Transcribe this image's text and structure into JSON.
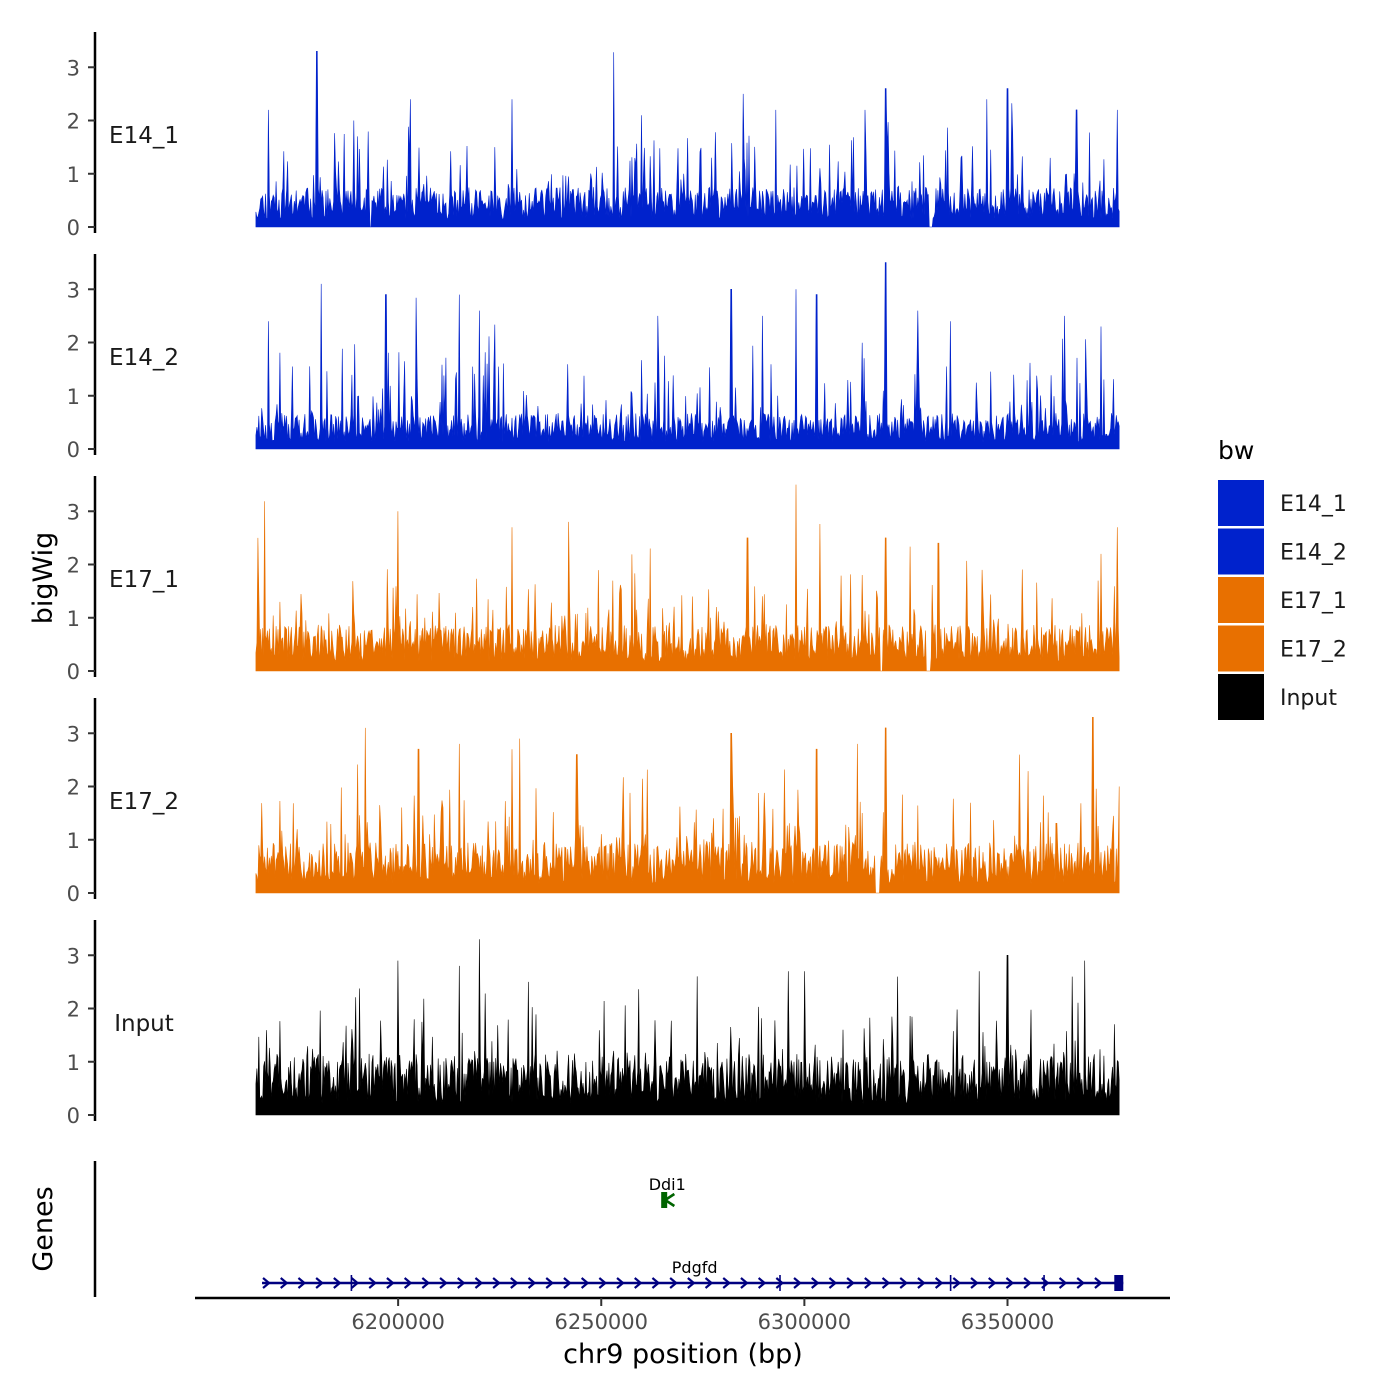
{
  "chart_data": {
    "type": "area",
    "x_label": "chr9 position (bp)",
    "x_range": [
      6150000,
      6390000
    ],
    "x_ticks": [
      {
        "value": 6200000,
        "label": "6200000"
      },
      {
        "value": 6250000,
        "label": "6250000"
      },
      {
        "value": 6300000,
        "label": "6300000"
      },
      {
        "value": 6350000,
        "label": "6350000"
      }
    ],
    "signal_x_range": [
      6165000,
      6377500
    ],
    "y_label": "bigWig",
    "y_range": [
      0,
      3.7
    ],
    "y_ticks": [
      {
        "value": 0,
        "label": "0"
      },
      {
        "value": 1,
        "label": "1"
      },
      {
        "value": 2,
        "label": "2"
      },
      {
        "value": 3,
        "label": "3"
      }
    ],
    "legend": {
      "title": "bw",
      "placement": "right",
      "entries": [
        {
          "label": "E14_1",
          "color": "#0022cc"
        },
        {
          "label": "E14_2",
          "color": "#0022cc"
        },
        {
          "label": "E17_1",
          "color": "#e87000"
        },
        {
          "label": "E17_2",
          "color": "#e87000"
        },
        {
          "label": "Input",
          "color": "#000000"
        }
      ]
    },
    "series": [
      {
        "name": "E14_1",
        "color": "#0022cc",
        "seed": 11,
        "baseline_mean": 0.55,
        "peaks": [
          [
            6168000,
            2.2
          ],
          [
            6180000,
            3.3
          ],
          [
            6189000,
            2.0
          ],
          [
            6203000,
            2.4
          ],
          [
            6228000,
            2.4
          ],
          [
            6260000,
            2.1
          ],
          [
            6285000,
            2.5
          ],
          [
            6293000,
            2.2
          ],
          [
            6315000,
            2.2
          ],
          [
            6320000,
            2.6
          ],
          [
            6345000,
            2.4
          ],
          [
            6350000,
            2.6
          ],
          [
            6367000,
            2.2
          ],
          [
            6377000,
            2.2
          ]
        ],
        "gaps": [
          [
            6330700,
            6331500
          ],
          [
            6193000,
            6193500
          ]
        ]
      },
      {
        "name": "E14_2",
        "color": "#0022cc",
        "seed": 23,
        "baseline_mean": 0.5,
        "peaks": [
          [
            6168000,
            2.4
          ],
          [
            6181000,
            3.1
          ],
          [
            6197000,
            2.9
          ],
          [
            6215000,
            2.9
          ],
          [
            6220000,
            2.6
          ],
          [
            6264000,
            2.5
          ],
          [
            6282000,
            3.0
          ],
          [
            6298000,
            3.0
          ],
          [
            6303000,
            2.9
          ],
          [
            6320000,
            3.5
          ],
          [
            6328000,
            2.6
          ],
          [
            6336000,
            2.4
          ],
          [
            6364000,
            2.5
          ],
          [
            6373000,
            2.3
          ]
        ],
        "gaps": []
      },
      {
        "name": "E17_1",
        "color": "#e87000",
        "seed": 37,
        "baseline_mean": 0.65,
        "peaks": [
          [
            6165500,
            2.5
          ],
          [
            6200000,
            3.0
          ],
          [
            6228000,
            2.7
          ],
          [
            6242000,
            2.8
          ],
          [
            6262000,
            2.3
          ],
          [
            6286000,
            2.5
          ],
          [
            6298000,
            3.5
          ],
          [
            6320000,
            2.5
          ],
          [
            6333000,
            2.4
          ],
          [
            6373000,
            2.2
          ],
          [
            6377000,
            2.7
          ]
        ],
        "gaps": [
          [
            6330000,
            6331000
          ],
          [
            6318500,
            6319200
          ]
        ]
      },
      {
        "name": "E17_2",
        "color": "#e87000",
        "seed": 41,
        "baseline_mean": 0.7,
        "peaks": [
          [
            6192000,
            3.1
          ],
          [
            6205000,
            2.7
          ],
          [
            6215000,
            2.8
          ],
          [
            6228000,
            2.7
          ],
          [
            6230000,
            2.9
          ],
          [
            6244000,
            2.6
          ],
          [
            6282000,
            3.0
          ],
          [
            6303000,
            2.7
          ],
          [
            6313000,
            2.8
          ],
          [
            6320000,
            3.1
          ],
          [
            6353000,
            2.6
          ],
          [
            6371000,
            3.3
          ],
          [
            6377500,
            2.0
          ]
        ],
        "gaps": [
          [
            6317500,
            6318500
          ]
        ]
      },
      {
        "name": "Input",
        "color": "#000000",
        "seed": 53,
        "baseline_mean": 0.85,
        "peaks": [
          [
            6220000,
            3.3
          ],
          [
            6215000,
            2.8
          ],
          [
            6200000,
            2.9
          ],
          [
            6232000,
            2.5
          ],
          [
            6296000,
            2.7
          ],
          [
            6300000,
            2.7
          ],
          [
            6323000,
            2.6
          ],
          [
            6343000,
            2.7
          ],
          [
            6350000,
            3.0
          ],
          [
            6369000,
            2.9
          ],
          [
            6366000,
            2.6
          ]
        ],
        "gaps": []
      }
    ],
    "genes": {
      "track_label": "Genes",
      "items": [
        {
          "name": "Ddi1",
          "start": 6265000,
          "end": 6267500,
          "strand": "-",
          "color": "#006400"
        },
        {
          "name": "Pdgfd",
          "start": 6166500,
          "end": 6378500,
          "strand": "+",
          "color": "#000080"
        }
      ]
    }
  }
}
